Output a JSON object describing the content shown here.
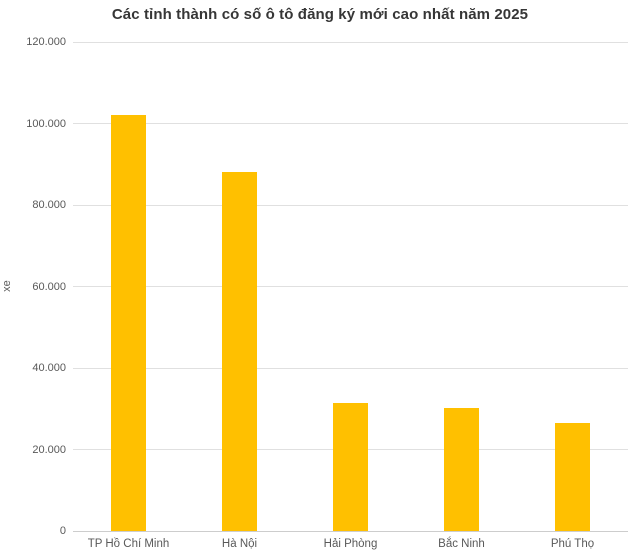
{
  "chart_data": {
    "type": "bar",
    "title": "Các tỉnh thành có số ô tô đăng ký mới cao nhất năm 2025",
    "ylabel": "xe",
    "xlabel": "",
    "categories": [
      "TP Hồ Chí Minh",
      "Hà Nội",
      "Hải Phòng",
      "Bắc Ninh",
      "Phú Thọ"
    ],
    "values": [
      102000,
      88000,
      31400,
      30300,
      26600
    ],
    "ylim": [
      0,
      120000
    ],
    "yticks": [
      {
        "value": 0,
        "label": "0"
      },
      {
        "value": 20000,
        "label": "20.000"
      },
      {
        "value": 40000,
        "label": "40.000"
      },
      {
        "value": 60000,
        "label": "60.000"
      },
      {
        "value": 80000,
        "label": "80.000"
      },
      {
        "value": 100000,
        "label": "100.000"
      },
      {
        "value": 120000,
        "label": "120.000"
      }
    ],
    "grid": "horizontal",
    "legend": "none",
    "colors": {
      "bar": "#FFC000",
      "gridline": "#e0e0e0",
      "axis_line": "#cdcdcd",
      "tick_text": "#595959",
      "title_text": "#363636"
    }
  }
}
